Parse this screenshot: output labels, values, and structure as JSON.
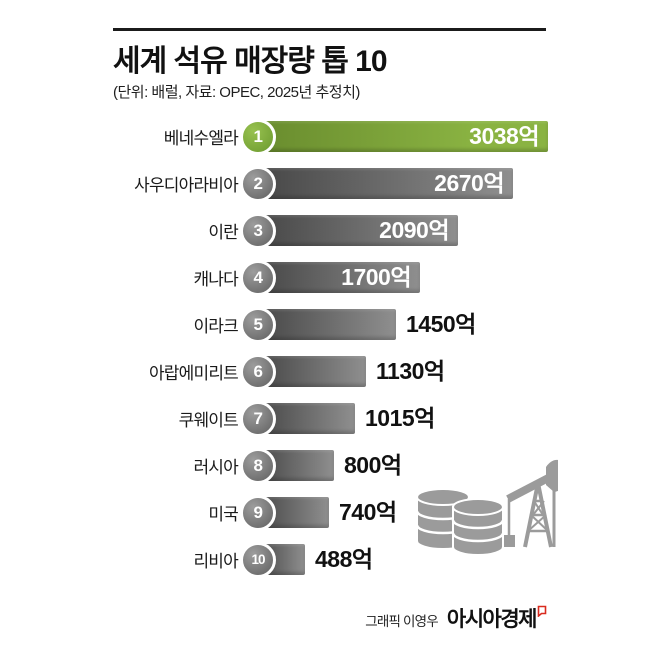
{
  "page": {
    "title": "세계 석유 매장량 톱 10",
    "subtitle": "(단위: 배럴, 자료: OPEC, 2025년 추정치)",
    "credit": "그래픽 이영우",
    "brand": "아시아경제"
  },
  "colors": {
    "accent_green": "#8ab342",
    "accent_green_dark": "#698c2e",
    "bar_gray_light": "#8f8f8f",
    "bar_gray_dark": "#474747",
    "icon_gray": "#9b9b9b",
    "brand_mark_red": "#d92b1f",
    "rule_black": "#1b1b1b"
  },
  "chart_data": {
    "type": "bar",
    "orientation": "horizontal",
    "title": "세계 석유 매장량 톱 10",
    "unit_note": "단위: 배럴",
    "source_note": "자료: OPEC, 2025년 추정치",
    "max_value": 3038,
    "categories": [
      "베네수엘라",
      "사우디아라비아",
      "이란",
      "캐나다",
      "이라크",
      "아랍에미리트",
      "쿠웨이트",
      "러시아",
      "미국",
      "리비아"
    ],
    "values": [
      3038,
      2670,
      2090,
      1700,
      1450,
      1130,
      1015,
      800,
      740,
      488
    ],
    "value_labels": [
      "3038억",
      "2670억",
      "2090억",
      "1700억",
      "1450억",
      "1130억",
      "1015억",
      "800억",
      "740억",
      "488억"
    ],
    "ranks": [
      "1",
      "2",
      "3",
      "4",
      "5",
      "6",
      "7",
      "8",
      "9",
      "10"
    ],
    "value_inside_bar": [
      true,
      true,
      true,
      true,
      false,
      false,
      false,
      false,
      false,
      false
    ],
    "highlight_index": 0,
    "legend": "none",
    "grid": "off"
  }
}
